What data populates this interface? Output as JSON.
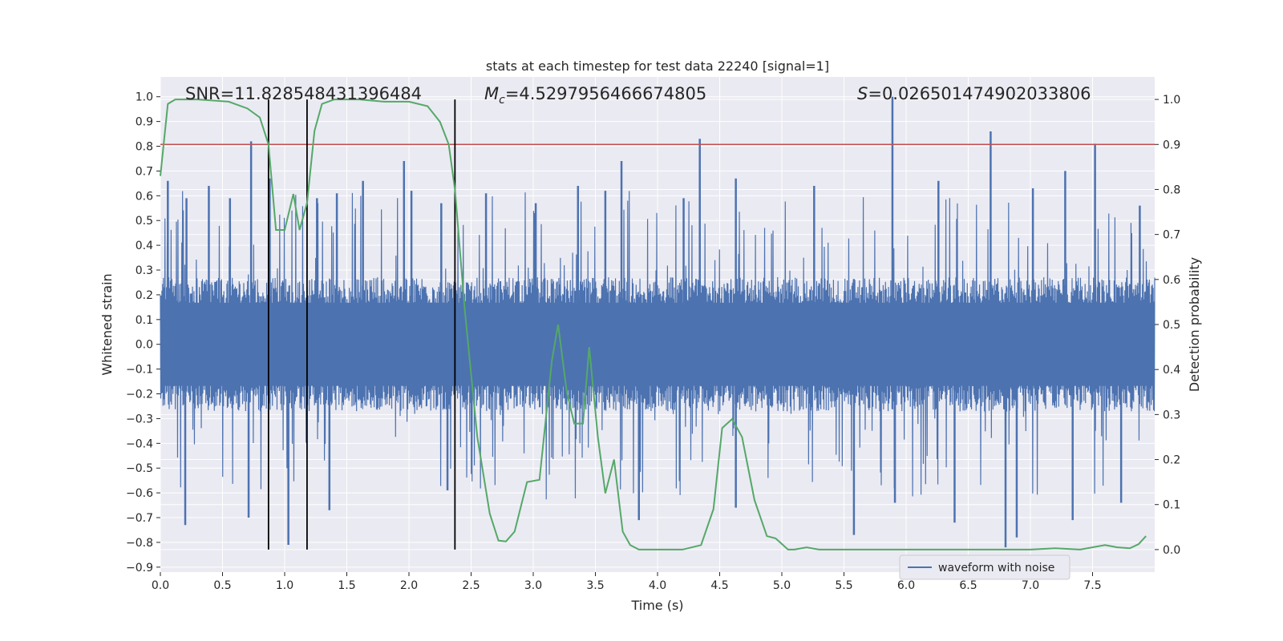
{
  "chart_data": {
    "type": "line",
    "title": "stats at each timestep for test data 22240 [signal=1]",
    "xlabel": "Time (s)",
    "ylabel": "Whitened strain",
    "y2label": "Detection probability",
    "xlim": [
      0,
      8
    ],
    "ylim": [
      -0.92,
      1.08
    ],
    "y2lim": [
      -0.05,
      1.05
    ],
    "xticks": [
      0.0,
      0.5,
      1.0,
      1.5,
      2.0,
      2.5,
      3.0,
      3.5,
      4.0,
      4.5,
      5.0,
      5.5,
      6.0,
      6.5,
      7.0,
      7.5
    ],
    "xtick_labels": [
      "0.0",
      "0.5",
      "1.0",
      "1.5",
      "2.0",
      "2.5",
      "3.0",
      "3.5",
      "4.0",
      "4.5",
      "5.0",
      "5.5",
      "6.0",
      "6.5",
      "7.0",
      "7.5"
    ],
    "yticks": [
      1.0,
      0.9,
      0.8,
      0.7,
      0.6,
      0.5,
      0.4,
      0.3,
      0.2,
      0.1,
      0.0,
      -0.1,
      -0.2,
      -0.3,
      -0.4,
      -0.5,
      -0.6,
      -0.7,
      -0.8,
      -0.9
    ],
    "ytick_labels": [
      "1.0",
      "0.9",
      "0.8",
      "0.7",
      "0.6",
      "0.5",
      "0.4",
      "0.3",
      "0.2",
      "0.1",
      "0.0",
      "−0.1",
      "−0.2",
      "−0.3",
      "−0.4",
      "−0.5",
      "−0.6",
      "−0.7",
      "−0.8",
      "−0.9"
    ],
    "y2ticks": [
      1.0,
      0.9,
      0.8,
      0.7,
      0.6,
      0.5,
      0.4,
      0.3,
      0.2,
      0.1,
      0.0
    ],
    "y2tick_labels": [
      "1.0",
      "0.9",
      "0.8",
      "0.7",
      "0.6",
      "0.5",
      "0.4",
      "0.3",
      "0.2",
      "0.1",
      "0.0"
    ],
    "grid": true,
    "legend": {
      "entries": [
        "waveform with noise"
      ],
      "placement": "lower-right"
    },
    "annotations": {
      "snr": "SNR=11.828548431396484",
      "mc_symbol": "M",
      "mc_sub": "c",
      "mc_value": "=4.5297956466674805",
      "s_symbol": "S",
      "s_value": "=0.026501474902033806"
    },
    "threshold": {
      "axis": "y2",
      "value": 0.9,
      "color": "#c44e52"
    },
    "vlines": {
      "x": [
        0.87,
        1.18,
        2.37
      ],
      "y2_range": [
        0.0,
        1.0
      ],
      "color": "#000000"
    },
    "waveform": {
      "name": "waveform with noise",
      "color": "#4c72b0",
      "x_range": [
        0,
        8
      ],
      "core_amplitude": 0.28,
      "peaks": [
        {
          "x": 0.06,
          "y": 0.66
        },
        {
          "x": 0.21,
          "y": 0.59
        },
        {
          "x": 0.39,
          "y": 0.64
        },
        {
          "x": 0.56,
          "y": 0.59
        },
        {
          "x": 0.73,
          "y": 0.82
        },
        {
          "x": 0.88,
          "y": 0.67
        },
        {
          "x": 1.26,
          "y": 0.59
        },
        {
          "x": 1.42,
          "y": 0.61
        },
        {
          "x": 1.63,
          "y": 0.66
        },
        {
          "x": 1.96,
          "y": 0.74
        },
        {
          "x": 2.02,
          "y": 0.62
        },
        {
          "x": 2.26,
          "y": 0.57
        },
        {
          "x": 2.62,
          "y": 0.61
        },
        {
          "x": 3.02,
          "y": 0.57
        },
        {
          "x": 3.36,
          "y": 0.64
        },
        {
          "x": 3.58,
          "y": 0.62
        },
        {
          "x": 3.71,
          "y": 0.74
        },
        {
          "x": 4.21,
          "y": 0.59
        },
        {
          "x": 4.34,
          "y": 0.83
        },
        {
          "x": 4.63,
          "y": 0.67
        },
        {
          "x": 5.26,
          "y": 0.64
        },
        {
          "x": 5.89,
          "y": 1.0
        },
        {
          "x": 6.26,
          "y": 0.66
        },
        {
          "x": 6.68,
          "y": 0.86
        },
        {
          "x": 7.02,
          "y": 0.63
        },
        {
          "x": 7.28,
          "y": 0.7
        },
        {
          "x": 7.52,
          "y": 0.81
        },
        {
          "x": 7.88,
          "y": 0.56
        }
      ],
      "troughs": [
        {
          "x": 0.2,
          "y": -0.73
        },
        {
          "x": 0.71,
          "y": -0.7
        },
        {
          "x": 1.03,
          "y": -0.81
        },
        {
          "x": 1.36,
          "y": -0.67
        },
        {
          "x": 2.31,
          "y": -0.59
        },
        {
          "x": 3.85,
          "y": -0.71
        },
        {
          "x": 4.63,
          "y": -0.66
        },
        {
          "x": 5.58,
          "y": -0.77
        },
        {
          "x": 5.91,
          "y": -0.64
        },
        {
          "x": 6.39,
          "y": -0.72
        },
        {
          "x": 6.8,
          "y": -0.82
        },
        {
          "x": 6.89,
          "y": -0.78
        },
        {
          "x": 7.34,
          "y": -0.71
        },
        {
          "x": 7.73,
          "y": -0.64
        }
      ]
    },
    "probability": {
      "color": "#55a868",
      "x": [
        0.0,
        0.06,
        0.12,
        0.3,
        0.55,
        0.7,
        0.8,
        0.87,
        0.93,
        1.0,
        1.07,
        1.12,
        1.18,
        1.24,
        1.3,
        1.4,
        1.6,
        1.8,
        2.0,
        2.15,
        2.25,
        2.32,
        2.37,
        2.45,
        2.55,
        2.65,
        2.72,
        2.78,
        2.85,
        2.95,
        3.05,
        3.15,
        3.2,
        3.27,
        3.33,
        3.4,
        3.45,
        3.52,
        3.58,
        3.65,
        3.72,
        3.78,
        3.85,
        4.0,
        4.2,
        4.35,
        4.45,
        4.52,
        4.6,
        4.68,
        4.78,
        4.88,
        4.95,
        5.05,
        5.1,
        5.2,
        5.3,
        5.4,
        5.5,
        5.7,
        6.0,
        6.5,
        7.0,
        7.2,
        7.4,
        7.6,
        7.7,
        7.8,
        7.87,
        7.93
      ],
      "y": [
        0.83,
        0.99,
        1.0,
        1.0,
        0.995,
        0.98,
        0.96,
        0.9,
        0.71,
        0.71,
        0.79,
        0.71,
        0.77,
        0.93,
        0.99,
        1.0,
        1.0,
        0.995,
        0.995,
        0.985,
        0.95,
        0.9,
        0.8,
        0.53,
        0.25,
        0.08,
        0.02,
        0.018,
        0.04,
        0.15,
        0.155,
        0.42,
        0.5,
        0.35,
        0.28,
        0.28,
        0.45,
        0.25,
        0.125,
        0.2,
        0.04,
        0.01,
        0.0,
        0.0,
        0.0,
        0.01,
        0.09,
        0.27,
        0.29,
        0.25,
        0.11,
        0.03,
        0.025,
        0.0,
        0.0,
        0.005,
        0.0,
        0.0,
        0.0,
        0.0,
        0.0,
        0.0,
        0.0,
        0.003,
        0.0,
        0.01,
        0.005,
        0.003,
        0.012,
        0.03
      ]
    }
  }
}
